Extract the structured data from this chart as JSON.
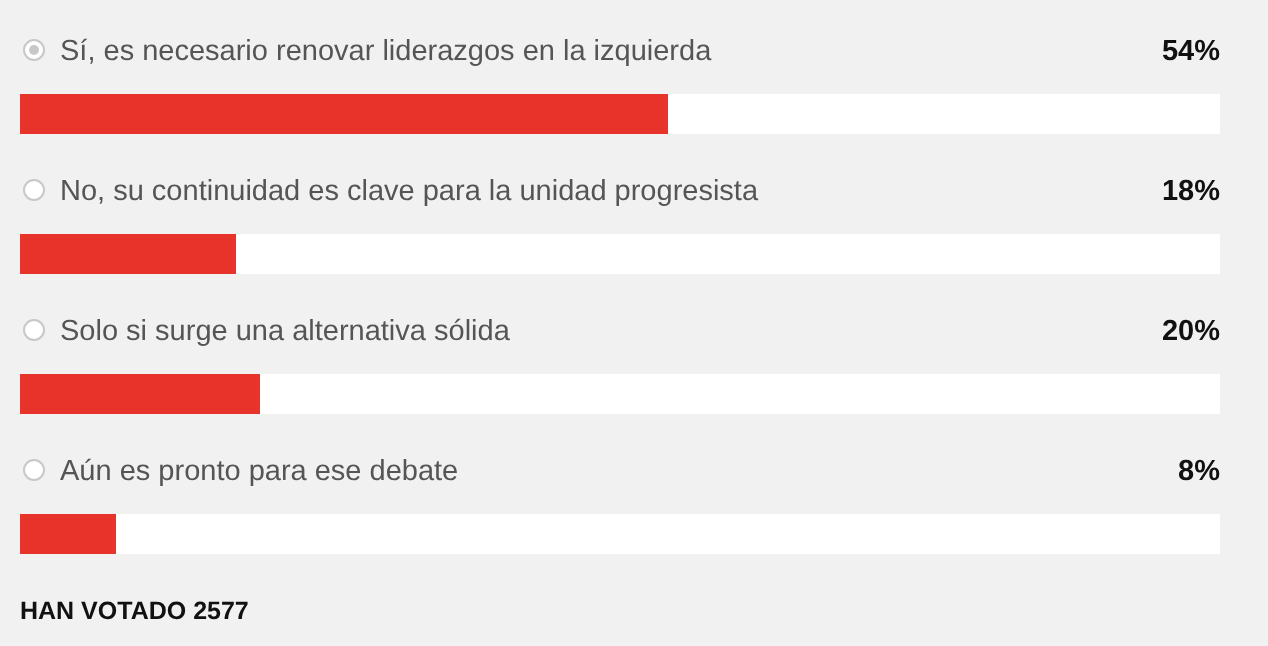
{
  "chart_data": {
    "type": "bar",
    "orientation": "horizontal",
    "categories": [
      "Sí, es necesario renovar liderazgos en la izquierda",
      "No, su continuidad es clave para la unidad progresista",
      "Solo si surge una alternativa sólida",
      "Aún es pronto para ese debate"
    ],
    "values": [
      54,
      18,
      20,
      8
    ],
    "value_labels": [
      "54%",
      "18%",
      "20%",
      "8%"
    ],
    "color": "#e8332a",
    "xlim": [
      0,
      100
    ],
    "annotations": [
      "HAN VOTADO 2577"
    ]
  }
}
